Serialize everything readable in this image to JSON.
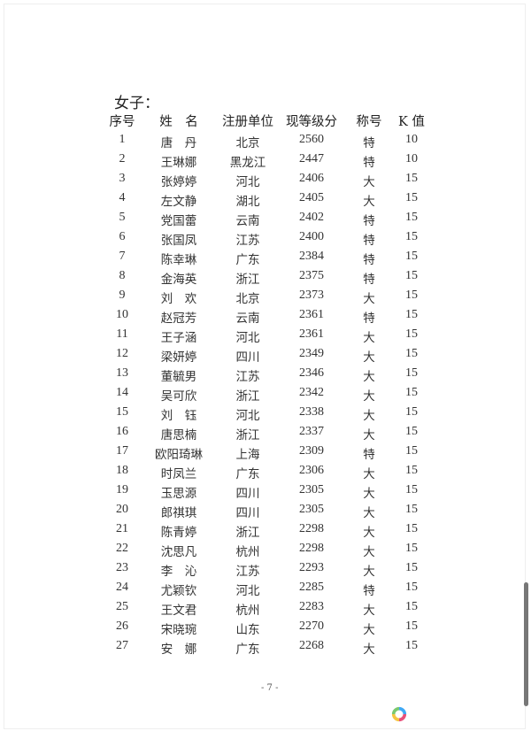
{
  "title": "女子：",
  "headers": [
    "序号",
    "姓　名",
    "注册单位",
    "现等级分",
    "称号",
    "K 值"
  ],
  "rows": [
    [
      "1",
      "唐　丹",
      "北京",
      "2560",
      "特",
      "10"
    ],
    [
      "2",
      "王琳娜",
      "黑龙江",
      "2447",
      "特",
      "10"
    ],
    [
      "3",
      "张婷婷",
      "河北",
      "2406",
      "大",
      "15"
    ],
    [
      "4",
      "左文静",
      "湖北",
      "2405",
      "大",
      "15"
    ],
    [
      "5",
      "党国蕾",
      "云南",
      "2402",
      "特",
      "15"
    ],
    [
      "6",
      "张国凤",
      "江苏",
      "2400",
      "特",
      "15"
    ],
    [
      "7",
      "陈幸琳",
      "广东",
      "2384",
      "特",
      "15"
    ],
    [
      "8",
      "金海英",
      "浙江",
      "2375",
      "特",
      "15"
    ],
    [
      "9",
      "刘　欢",
      "北京",
      "2373",
      "大",
      "15"
    ],
    [
      "10",
      "赵冠芳",
      "云南",
      "2361",
      "特",
      "15"
    ],
    [
      "11",
      "王子涵",
      "河北",
      "2361",
      "大",
      "15"
    ],
    [
      "12",
      "梁妍婷",
      "四川",
      "2349",
      "大",
      "15"
    ],
    [
      "13",
      "董毓男",
      "江苏",
      "2346",
      "大",
      "15"
    ],
    [
      "14",
      "吴可欣",
      "浙江",
      "2342",
      "大",
      "15"
    ],
    [
      "15",
      "刘　钰",
      "河北",
      "2338",
      "大",
      "15"
    ],
    [
      "16",
      "唐思楠",
      "浙江",
      "2337",
      "大",
      "15"
    ],
    [
      "17",
      "欧阳琦琳",
      "上海",
      "2309",
      "特",
      "15"
    ],
    [
      "18",
      "时凤兰",
      "广东",
      "2306",
      "大",
      "15"
    ],
    [
      "19",
      "玉思源",
      "四川",
      "2305",
      "大",
      "15"
    ],
    [
      "20",
      "郎祺琪",
      "四川",
      "2305",
      "大",
      "15"
    ],
    [
      "21",
      "陈青婷",
      "浙江",
      "2298",
      "大",
      "15"
    ],
    [
      "22",
      "沈思凡",
      "杭州",
      "2298",
      "大",
      "15"
    ],
    [
      "23",
      "李　沁",
      "江苏",
      "2293",
      "大",
      "15"
    ],
    [
      "24",
      "尤颖钦",
      "河北",
      "2285",
      "特",
      "15"
    ],
    [
      "25",
      "王文君",
      "杭州",
      "2283",
      "大",
      "15"
    ],
    [
      "26",
      "宋晓琬",
      "山东",
      "2270",
      "大",
      "15"
    ],
    [
      "27",
      "安　娜",
      "广东",
      "2268",
      "大",
      "15"
    ]
  ],
  "page_number": "- 7 -",
  "logo_colors": [
    "#3fa9f5",
    "#e8507a",
    "#f5c542",
    "#7bc96f"
  ]
}
